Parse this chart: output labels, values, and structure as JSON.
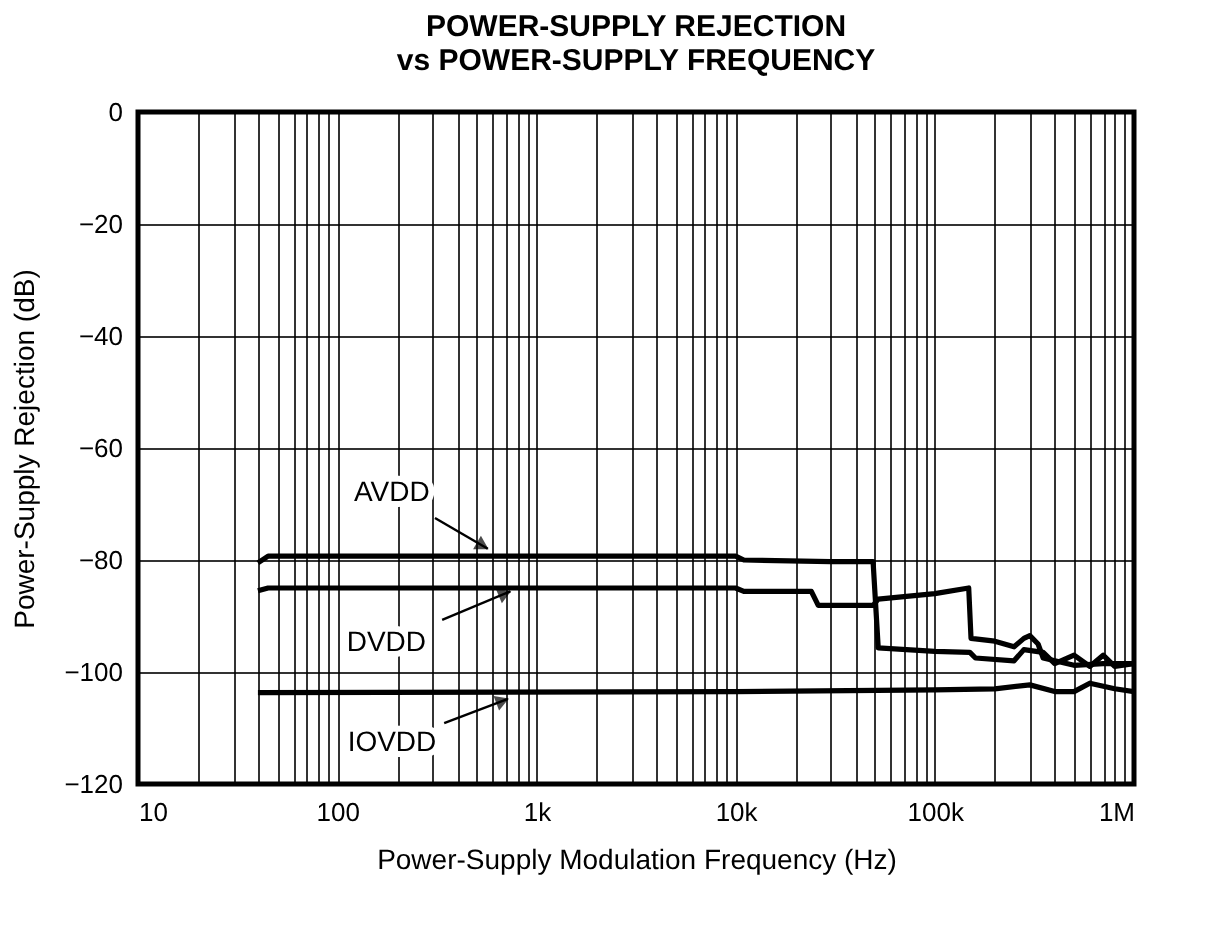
{
  "chart_data": {
    "type": "line",
    "title": "POWER-SUPPLY REJECTION\nvs POWER-SUPPLY FREQUENCY",
    "xlabel": "Power-Supply Modulation Frequency (Hz)",
    "ylabel": "Power-Supply Rejection (dB)",
    "log": "x",
    "grid": true,
    "xlim": [
      10,
      1000000
    ],
    "ylim": [
      -120,
      0
    ],
    "xticks": [
      10,
      {
        "value": 20,
        "label": null
      },
      {
        "value": 30,
        "label": null
      },
      {
        "value": 40,
        "label": null
      },
      {
        "value": 50,
        "label": null
      },
      {
        "value": 60,
        "label": null
      },
      {
        "value": 70,
        "label": null
      },
      {
        "value": 80,
        "label": null
      },
      {
        "value": 90,
        "label": null
      },
      100,
      {
        "value": 200,
        "label": null
      },
      {
        "value": 300,
        "label": null
      },
      {
        "value": 400,
        "label": null
      },
      {
        "value": 500,
        "label": null
      },
      {
        "value": 600,
        "label": null
      },
      {
        "value": 700,
        "label": null
      },
      {
        "value": 800,
        "label": null
      },
      {
        "value": 900,
        "label": null
      },
      {
        "value": 1000,
        "label": "1k"
      },
      {
        "value": 2000,
        "label": null
      },
      {
        "value": 3000,
        "label": null
      },
      {
        "value": 4000,
        "label": null
      },
      {
        "value": 5000,
        "label": null
      },
      {
        "value": 6000,
        "label": null
      },
      {
        "value": 7000,
        "label": null
      },
      {
        "value": 8000,
        "label": null
      },
      {
        "value": 9000,
        "label": null
      },
      {
        "value": 10000,
        "label": "10k"
      },
      {
        "value": 20000,
        "label": null
      },
      {
        "value": 30000,
        "label": null
      },
      {
        "value": 40000,
        "label": null
      },
      {
        "value": 50000,
        "label": null
      },
      {
        "value": 60000,
        "label": null
      },
      {
        "value": 70000,
        "label": null
      },
      {
        "value": 80000,
        "label": null
      },
      {
        "value": 90000,
        "label": null
      },
      {
        "value": 100000,
        "label": "100k"
      },
      {
        "value": 200000,
        "label": null
      },
      {
        "value": 300000,
        "label": null
      },
      {
        "value": 400000,
        "label": null
      },
      {
        "value": 500000,
        "label": null
      },
      {
        "value": 600000,
        "label": null
      },
      {
        "value": 700000,
        "label": null
      },
      {
        "value": 800000,
        "label": null
      },
      {
        "value": 900000,
        "label": null
      },
      {
        "value": 1000000,
        "label": "1M"
      }
    ],
    "yticks": [
      -120,
      -100,
      -80,
      -60,
      -40,
      -20,
      0
    ],
    "series": [
      {
        "color": "#000000",
        "x": [
          40,
          45,
          1000,
          10000,
          11000,
          30000,
          49000,
          52000,
          100000,
          150000,
          160000,
          250000,
          280000,
          350000,
          400000,
          500000,
          600000,
          700000,
          800000,
          1000000
        ],
        "values": [
          -80.5,
          -79.3,
          -79.3,
          -79.3,
          -80,
          -80.3,
          -80.3,
          -95.7,
          -96.3,
          -96.5,
          -97.5,
          -98,
          -96,
          -96.5,
          -98.5,
          -97,
          -99,
          -97,
          -99,
          -98.5
        ]
      },
      {
        "color": "#000000",
        "x": [
          40,
          45,
          10000,
          11000,
          24000,
          26000,
          49000,
          52000,
          100000,
          148000,
          152000,
          200000,
          250000,
          280000,
          300000,
          330000,
          350000,
          500000,
          700000,
          1000000
        ],
        "values": [
          -85.5,
          -85,
          -85,
          -85.6,
          -85.6,
          -88.1,
          -88.1,
          -87,
          -86,
          -85,
          -94,
          -94.5,
          -95.5,
          -94,
          -93.5,
          -95,
          -97.5,
          -98.8,
          -98.5,
          -98.5
        ]
      },
      {
        "color": "#000000",
        "x": [
          40,
          10000,
          100000,
          200000,
          300000,
          400000,
          500000,
          600000,
          800000,
          1000000
        ],
        "values": [
          -103.7,
          -103.5,
          -103.2,
          -103,
          -102.3,
          -103.5,
          -103.5,
          -102,
          -103,
          -103.5
        ]
      }
    ],
    "annotations": [
      {
        "text": "AVDD",
        "x": 570,
        "y": -78
      },
      {
        "text": "DVDD",
        "x": 740,
        "y": -85.6
      },
      {
        "text": "IOVDD",
        "x": 720,
        "y": -104.8
      }
    ]
  }
}
